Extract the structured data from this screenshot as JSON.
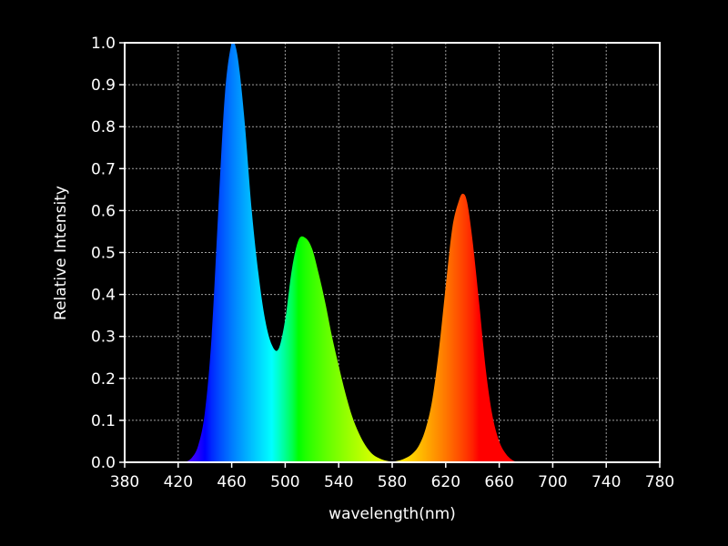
{
  "chart_data": {
    "type": "area",
    "title": "",
    "xlabel": "wavelength(nm)",
    "ylabel": "Relative Intensity",
    "xlim": [
      380,
      780
    ],
    "ylim": [
      0,
      1.0
    ],
    "xticks": [
      380,
      420,
      460,
      500,
      540,
      580,
      620,
      660,
      700,
      740,
      780
    ],
    "yticks": [
      0.0,
      0.1,
      0.2,
      0.3,
      0.4,
      0.5,
      0.6,
      0.7,
      0.8,
      0.9,
      1.0
    ],
    "xtick_labels": [
      "380",
      "420",
      "460",
      "500",
      "540",
      "580",
      "620",
      "660",
      "700",
      "740",
      "780"
    ],
    "ytick_labels": [
      "0.0",
      "0.1",
      "0.2",
      "0.3",
      "0.4",
      "0.5",
      "0.6",
      "0.7",
      "0.8",
      "0.9",
      "1.0"
    ],
    "grid": true,
    "fill": "spectral-gradient",
    "x": [
      425,
      430,
      435,
      440,
      445,
      450,
      455,
      460,
      463,
      466,
      470,
      475,
      480,
      485,
      490,
      495,
      500,
      505,
      510,
      515,
      520,
      525,
      530,
      535,
      540,
      545,
      550,
      555,
      560,
      565,
      570,
      575,
      580,
      585,
      590,
      595,
      600,
      605,
      610,
      615,
      620,
      625,
      630,
      633,
      636,
      640,
      645,
      650,
      655,
      660,
      665,
      670,
      675
    ],
    "y": [
      0.0,
      0.01,
      0.04,
      0.12,
      0.3,
      0.6,
      0.88,
      1.0,
      0.99,
      0.93,
      0.8,
      0.6,
      0.45,
      0.34,
      0.28,
      0.27,
      0.34,
      0.46,
      0.53,
      0.535,
      0.51,
      0.45,
      0.38,
      0.3,
      0.23,
      0.165,
      0.11,
      0.07,
      0.04,
      0.02,
      0.01,
      0.004,
      0.002,
      0.004,
      0.01,
      0.02,
      0.04,
      0.08,
      0.15,
      0.27,
      0.42,
      0.56,
      0.625,
      0.64,
      0.62,
      0.53,
      0.38,
      0.22,
      0.11,
      0.05,
      0.02,
      0.005,
      0.0
    ]
  }
}
